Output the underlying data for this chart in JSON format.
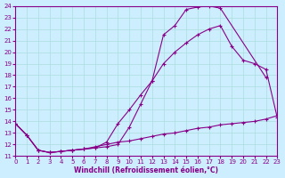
{
  "xlabel": "Windchill (Refroidissement éolien,°C)",
  "bg_color": "#cceeff",
  "line_color": "#880088",
  "grid_color": "#aadddd",
  "xlim": [
    0,
    23
  ],
  "ylim": [
    11,
    24
  ],
  "yticks": [
    11,
    12,
    13,
    14,
    15,
    16,
    17,
    18,
    19,
    20,
    21,
    22,
    23,
    24
  ],
  "xticks": [
    0,
    1,
    2,
    3,
    4,
    5,
    6,
    7,
    8,
    9,
    10,
    11,
    12,
    13,
    14,
    15,
    16,
    17,
    18,
    19,
    20,
    21,
    22,
    23
  ],
  "series": [
    {
      "x": [
        0,
        1,
        2,
        3,
        4,
        5,
        6,
        7,
        8,
        9,
        10,
        11,
        12,
        13,
        14,
        15,
        16,
        17,
        18,
        22
      ],
      "y": [
        13.8,
        12.8,
        11.5,
        11.3,
        11.4,
        11.5,
        11.6,
        11.7,
        11.8,
        12.0,
        13.5,
        15.5,
        17.5,
        21.5,
        22.3,
        23.7,
        23.9,
        24.0,
        23.8,
        17.8
      ]
    },
    {
      "x": [
        0,
        1,
        2,
        3,
        4,
        5,
        6,
        7,
        8,
        9,
        10,
        11,
        12,
        13,
        14,
        15,
        16,
        17,
        18,
        19,
        20,
        21,
        22,
        23
      ],
      "y": [
        13.8,
        12.8,
        11.5,
        11.3,
        11.4,
        11.5,
        11.6,
        11.7,
        12.2,
        13.8,
        15.0,
        16.3,
        17.5,
        19.0,
        20.0,
        20.8,
        21.5,
        22.0,
        22.3,
        20.5,
        19.3,
        19.0,
        18.5,
        14.3
      ]
    },
    {
      "x": [
        0,
        1,
        2,
        3,
        4,
        5,
        6,
        7,
        8,
        9,
        10,
        11,
        12,
        13,
        14,
        15,
        16,
        17,
        18,
        19,
        20,
        21,
        22,
        23
      ],
      "y": [
        13.8,
        12.8,
        11.5,
        11.3,
        11.4,
        11.5,
        11.6,
        11.8,
        12.0,
        12.2,
        12.3,
        12.5,
        12.7,
        12.9,
        13.0,
        13.2,
        13.4,
        13.5,
        13.7,
        13.8,
        13.9,
        14.0,
        14.2,
        14.5
      ]
    }
  ]
}
